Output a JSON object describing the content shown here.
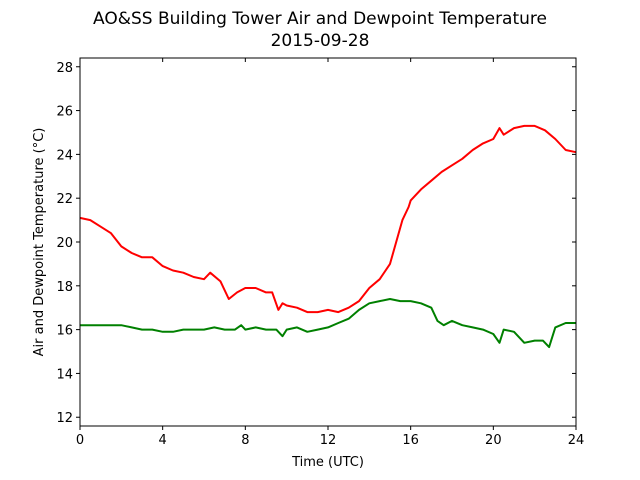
{
  "chart_data": {
    "type": "line",
    "title": "AO&SS Building Tower Air and Dewpoint Temperature",
    "subtitle": "2015-09-28",
    "xlabel": "Time (UTC)",
    "ylabel": "Air and Dewpoint Temperature (°C)",
    "xlim": [
      0,
      24
    ],
    "ylim": [
      11.6,
      28.4
    ],
    "xticks": [
      0,
      4,
      8,
      12,
      16,
      20,
      24
    ],
    "yticks": [
      12,
      14,
      16,
      18,
      20,
      22,
      24,
      26,
      28
    ],
    "grid": false,
    "series": [
      {
        "color": "#ff0000",
        "x": [
          0,
          0.5,
          1,
          1.5,
          2,
          2.5,
          3,
          3.5,
          4,
          4.5,
          5,
          5.5,
          6,
          6.3,
          6.8,
          7.2,
          7.6,
          8,
          8.5,
          9,
          9.3,
          9.6,
          9.8,
          10,
          10.5,
          11,
          11.5,
          12,
          12.5,
          13,
          13.5,
          14,
          14.5,
          15,
          15.3,
          15.6,
          15.9,
          16,
          16.5,
          17,
          17.5,
          18,
          18.5,
          19,
          19.5,
          20,
          20.3,
          20.5,
          21,
          21.5,
          22,
          22.5,
          23,
          23.5,
          24
        ],
        "y": [
          21.1,
          21.0,
          20.7,
          20.4,
          19.8,
          19.5,
          19.3,
          19.3,
          18.9,
          18.7,
          18.6,
          18.4,
          18.3,
          18.6,
          18.2,
          17.4,
          17.7,
          17.9,
          17.9,
          17.7,
          17.7,
          16.9,
          17.2,
          17.1,
          17.0,
          16.8,
          16.8,
          16.9,
          16.8,
          17.0,
          17.3,
          17.9,
          18.3,
          19.0,
          20.0,
          21.0,
          21.6,
          21.9,
          22.4,
          22.8,
          23.2,
          23.5,
          23.8,
          24.2,
          24.5,
          24.7,
          25.2,
          24.9,
          25.2,
          25.3,
          25.3,
          25.1,
          24.7,
          24.2,
          24.1
        ]
      },
      {
        "color": "#008000",
        "x": [
          0,
          1,
          2,
          2.5,
          3,
          3.5,
          4,
          4.5,
          5,
          5.5,
          6,
          6.5,
          7,
          7.5,
          7.8,
          8,
          8.5,
          9,
          9.5,
          9.8,
          10,
          10.5,
          11,
          11.5,
          12,
          12.5,
          13,
          13.5,
          14,
          14.5,
          15,
          15.5,
          16,
          16.5,
          17,
          17.3,
          17.6,
          18,
          18.5,
          19,
          19.5,
          20,
          20.3,
          20.5,
          21,
          21.5,
          22,
          22.4,
          22.7,
          23,
          23.5,
          24
        ],
        "y": [
          16.2,
          16.2,
          16.2,
          16.1,
          16.0,
          16.0,
          15.9,
          15.9,
          16.0,
          16.0,
          16.0,
          16.1,
          16.0,
          16.0,
          16.2,
          16.0,
          16.1,
          16.0,
          16.0,
          15.7,
          16.0,
          16.1,
          15.9,
          16.0,
          16.1,
          16.3,
          16.5,
          16.9,
          17.2,
          17.3,
          17.4,
          17.3,
          17.3,
          17.2,
          17.0,
          16.4,
          16.2,
          16.4,
          16.2,
          16.1,
          16.0,
          15.8,
          15.4,
          16.0,
          15.9,
          15.4,
          15.5,
          15.5,
          15.2,
          16.1,
          16.3,
          16.3
        ]
      }
    ]
  }
}
